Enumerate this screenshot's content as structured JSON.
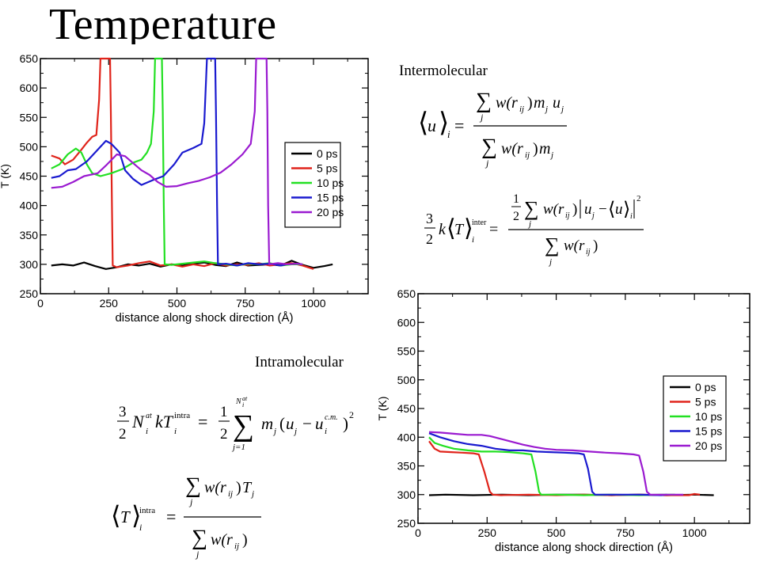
{
  "slide": {
    "title": "Temperature"
  },
  "section_labels": {
    "inter": "Intermolecular",
    "intra": "Intramolecular"
  },
  "colors": {
    "0 ps": "#000000",
    "5 ps": "#e0241b",
    "10 ps": "#22e022",
    "15 ps": "#1a1acf",
    "20 ps": "#9a1ad0"
  },
  "chart_data": [
    {
      "id": "top",
      "type": "line",
      "xlabel": "distance along shock direction (Å)",
      "ylabel": "T (K)",
      "xlim": [
        0,
        1200
      ],
      "ylim": [
        250,
        650
      ],
      "xticks": [
        0,
        250,
        500,
        750,
        1000
      ],
      "yticks": [
        250,
        300,
        350,
        400,
        450,
        500,
        550,
        600,
        650
      ],
      "legend_position": "right-middle",
      "series": [
        {
          "name": "0 ps",
          "color": "#000000",
          "points": [
            [
              40,
              298
            ],
            [
              80,
              300
            ],
            [
              120,
              298
            ],
            [
              160,
              303
            ],
            [
              200,
              297
            ],
            [
              240,
              292
            ],
            [
              280,
              295
            ],
            [
              320,
              300
            ],
            [
              360,
              298
            ],
            [
              400,
              301
            ],
            [
              440,
              296
            ],
            [
              480,
              300
            ],
            [
              520,
              298
            ],
            [
              560,
              301
            ],
            [
              600,
              303
            ],
            [
              640,
              299
            ],
            [
              680,
              297
            ],
            [
              720,
              303
            ],
            [
              760,
              298
            ],
            [
              800,
              299
            ],
            [
              840,
              300
            ],
            [
              880,
              298
            ],
            [
              920,
              306
            ],
            [
              960,
              299
            ],
            [
              1000,
              294
            ],
            [
              1040,
              297
            ],
            [
              1070,
              300
            ]
          ]
        },
        {
          "name": "5 ps",
          "color": "#e0241b",
          "points": [
            [
              40,
              485
            ],
            [
              70,
              480
            ],
            [
              90,
              470
            ],
            [
              120,
              478
            ],
            [
              150,
              495
            ],
            [
              170,
              507
            ],
            [
              190,
              517
            ],
            [
              205,
              520
            ],
            [
              215,
              580
            ],
            [
              220,
              650
            ],
            [
              255,
              650
            ],
            [
              258,
              560
            ],
            [
              262,
              400
            ],
            [
              265,
              298
            ],
            [
              280,
              295
            ],
            [
              320,
              298
            ],
            [
              360,
              302
            ],
            [
              400,
              305
            ],
            [
              440,
              298
            ],
            [
              480,
              300
            ],
            [
              520,
              296
            ],
            [
              560,
              300
            ],
            [
              600,
              297
            ],
            [
              640,
              302
            ],
            [
              680,
              298
            ],
            [
              720,
              300
            ],
            [
              760,
              299
            ],
            [
              800,
              302
            ],
            [
              840,
              298
            ],
            [
              880,
              300
            ],
            [
              920,
              302
            ],
            [
              960,
              298
            ],
            [
              1000,
              292
            ]
          ]
        },
        {
          "name": "10 ps",
          "color": "#22e022",
          "points": [
            [
              40,
              463
            ],
            [
              70,
              470
            ],
            [
              100,
              487
            ],
            [
              130,
              497
            ],
            [
              150,
              490
            ],
            [
              170,
              470
            ],
            [
              190,
              455
            ],
            [
              220,
              450
            ],
            [
              260,
              455
            ],
            [
              300,
              462
            ],
            [
              340,
              473
            ],
            [
              370,
              478
            ],
            [
              390,
              490
            ],
            [
              405,
              505
            ],
            [
              415,
              560
            ],
            [
              420,
              650
            ],
            [
              445,
              650
            ],
            [
              448,
              560
            ],
            [
              452,
              400
            ],
            [
              455,
              300
            ],
            [
              480,
              299
            ],
            [
              520,
              301
            ],
            [
              560,
              303
            ],
            [
              600,
              305
            ],
            [
              640,
              302
            ],
            [
              680,
              300
            ],
            [
              720,
              298
            ],
            [
              760,
              301
            ],
            [
              800,
              300
            ],
            [
              840,
              302
            ],
            [
              880,
              298
            ],
            [
              920,
              300
            ],
            [
              960,
              300
            ]
          ]
        },
        {
          "name": "15 ps",
          "color": "#1a1acf",
          "points": [
            [
              40,
              447
            ],
            [
              70,
              450
            ],
            [
              100,
              460
            ],
            [
              130,
              462
            ],
            [
              170,
              475
            ],
            [
              210,
              495
            ],
            [
              240,
              510
            ],
            [
              260,
              505
            ],
            [
              290,
              490
            ],
            [
              310,
              460
            ],
            [
              340,
              445
            ],
            [
              370,
              435
            ],
            [
              410,
              443
            ],
            [
              450,
              450
            ],
            [
              490,
              470
            ],
            [
              520,
              490
            ],
            [
              560,
              498
            ],
            [
              590,
              505
            ],
            [
              600,
              540
            ],
            [
              610,
              650
            ],
            [
              640,
              650
            ],
            [
              643,
              560
            ],
            [
              647,
              400
            ],
            [
              650,
              300
            ],
            [
              680,
              301
            ],
            [
              720,
              298
            ],
            [
              760,
              302
            ],
            [
              800,
              300
            ],
            [
              840,
              301
            ],
            [
              880,
              298
            ],
            [
              900,
              300
            ]
          ]
        },
        {
          "name": "20 ps",
          "color": "#9a1ad0",
          "points": [
            [
              40,
              430
            ],
            [
              80,
              432
            ],
            [
              120,
              440
            ],
            [
              160,
              450
            ],
            [
              210,
              455
            ],
            [
              240,
              468
            ],
            [
              280,
              487
            ],
            [
              310,
              484
            ],
            [
              340,
              472
            ],
            [
              370,
              460
            ],
            [
              400,
              452
            ],
            [
              430,
              440
            ],
            [
              460,
              432
            ],
            [
              500,
              433
            ],
            [
              540,
              438
            ],
            [
              580,
              442
            ],
            [
              620,
              448
            ],
            [
              660,
              456
            ],
            [
              700,
              470
            ],
            [
              740,
              487
            ],
            [
              770,
              505
            ],
            [
              785,
              560
            ],
            [
              790,
              650
            ],
            [
              828,
              650
            ],
            [
              831,
              560
            ],
            [
              834,
              400
            ],
            [
              838,
              300
            ],
            [
              870,
              302
            ],
            [
              900,
              300
            ],
            [
              940,
              301
            ],
            [
              960,
              300
            ]
          ]
        }
      ]
    },
    {
      "id": "bottom",
      "type": "line",
      "xlabel": "distance along shock direction (Å)",
      "ylabel": "T (K)",
      "xlim": [
        0,
        1200
      ],
      "ylim": [
        250,
        650
      ],
      "xticks": [
        0,
        250,
        500,
        750,
        1000
      ],
      "yticks": [
        250,
        300,
        350,
        400,
        450,
        500,
        550,
        600,
        650
      ],
      "legend_position": "right-middle",
      "series": [
        {
          "name": "0 ps",
          "color": "#000000",
          "points": [
            [
              40,
              299
            ],
            [
              100,
              300
            ],
            [
              200,
              299
            ],
            [
              300,
              300
            ],
            [
              400,
              299
            ],
            [
              500,
              300
            ],
            [
              600,
              300
            ],
            [
              700,
              299
            ],
            [
              800,
              300
            ],
            [
              900,
              299
            ],
            [
              1000,
              300
            ],
            [
              1070,
              299
            ]
          ]
        },
        {
          "name": "5 ps",
          "color": "#e0241b",
          "points": [
            [
              40,
              393
            ],
            [
              60,
              380
            ],
            [
              80,
              375
            ],
            [
              120,
              374
            ],
            [
              160,
              373
            ],
            [
              200,
              372
            ],
            [
              220,
              370
            ],
            [
              240,
              340
            ],
            [
              260,
              305
            ],
            [
              270,
              300
            ],
            [
              300,
              299
            ],
            [
              400,
              300
            ],
            [
              500,
              299
            ],
            [
              600,
              300
            ],
            [
              700,
              299
            ],
            [
              800,
              300
            ],
            [
              900,
              299
            ],
            [
              980,
              299
            ],
            [
              1000,
              301
            ],
            [
              1020,
              300
            ]
          ]
        },
        {
          "name": "10 ps",
          "color": "#22e022",
          "points": [
            [
              40,
              400
            ],
            [
              60,
              390
            ],
            [
              90,
              385
            ],
            [
              130,
              380
            ],
            [
              180,
              377
            ],
            [
              230,
              375
            ],
            [
              280,
              375
            ],
            [
              330,
              374
            ],
            [
              380,
              372
            ],
            [
              410,
              370
            ],
            [
              425,
              340
            ],
            [
              438,
              305
            ],
            [
              445,
              300
            ],
            [
              500,
              300
            ],
            [
              600,
              299
            ],
            [
              700,
              300
            ],
            [
              800,
              299
            ],
            [
              880,
              300
            ],
            [
              930,
              300
            ]
          ]
        },
        {
          "name": "15 ps",
          "color": "#1a1acf",
          "points": [
            [
              40,
              407
            ],
            [
              80,
              400
            ],
            [
              130,
              393
            ],
            [
              180,
              388
            ],
            [
              230,
              385
            ],
            [
              280,
              380
            ],
            [
              330,
              377
            ],
            [
              380,
              377
            ],
            [
              430,
              375
            ],
            [
              480,
              374
            ],
            [
              530,
              373
            ],
            [
              580,
              372
            ],
            [
              600,
              370
            ],
            [
              615,
              345
            ],
            [
              630,
              305
            ],
            [
              640,
              300
            ],
            [
              700,
              300
            ],
            [
              800,
              300
            ],
            [
              880,
              299
            ],
            [
              900,
              300
            ]
          ]
        },
        {
          "name": "20 ps",
          "color": "#9a1ad0",
          "points": [
            [
              40,
              409
            ],
            [
              80,
              408
            ],
            [
              130,
              406
            ],
            [
              180,
              404
            ],
            [
              230,
              404
            ],
            [
              260,
              402
            ],
            [
              300,
              397
            ],
            [
              340,
              392
            ],
            [
              380,
              387
            ],
            [
              420,
              383
            ],
            [
              460,
              380
            ],
            [
              500,
              378
            ],
            [
              560,
              377
            ],
            [
              620,
              375
            ],
            [
              680,
              373
            ],
            [
              730,
              372
            ],
            [
              780,
              370
            ],
            [
              800,
              368
            ],
            [
              815,
              340
            ],
            [
              828,
              305
            ],
            [
              840,
              300
            ],
            [
              880,
              300
            ],
            [
              940,
              300
            ],
            [
              960,
              300
            ]
          ]
        }
      ]
    }
  ]
}
